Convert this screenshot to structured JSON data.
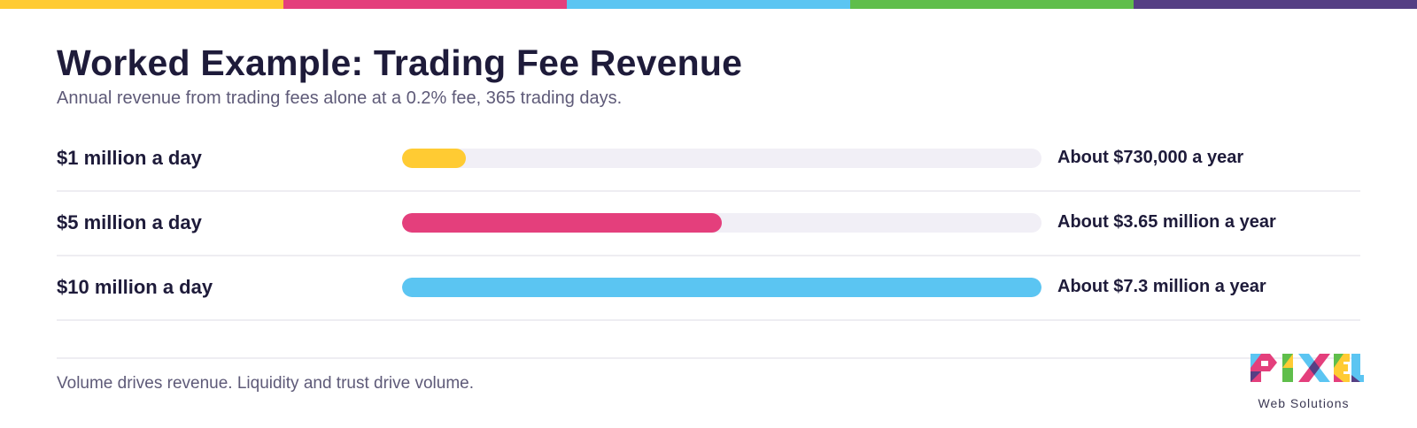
{
  "brand_stripe": [
    "#FFCB33",
    "#E43F7C",
    "#5BC5F2",
    "#5FBE4B",
    "#553F84"
  ],
  "header": {
    "title": "Worked Example: Trading Fee Revenue",
    "subtitle": "Annual revenue from trading fees alone at a 0.2% fee, 365 trading days."
  },
  "chart_data": {
    "type": "bar",
    "orientation": "horizontal",
    "categories": [
      "$1 million a day",
      "$5 million a day",
      "$10 million a day"
    ],
    "values": [
      730000,
      3650000,
      7300000
    ],
    "value_labels": [
      "About $730,000 a year",
      "About $3.65 million a year",
      "About $7.3 million a year"
    ],
    "colors": [
      "#FFCB33",
      "#E43F7C",
      "#5BC5F2"
    ],
    "track_color": "#F1EFF6",
    "xlim": [
      0,
      7300000
    ],
    "grid": false
  },
  "footer": {
    "note": "Volume drives revenue. Liquidity and trust drive volume."
  },
  "logo": {
    "wordmark": "PIXEL",
    "subtitle": "Web Solutions"
  }
}
